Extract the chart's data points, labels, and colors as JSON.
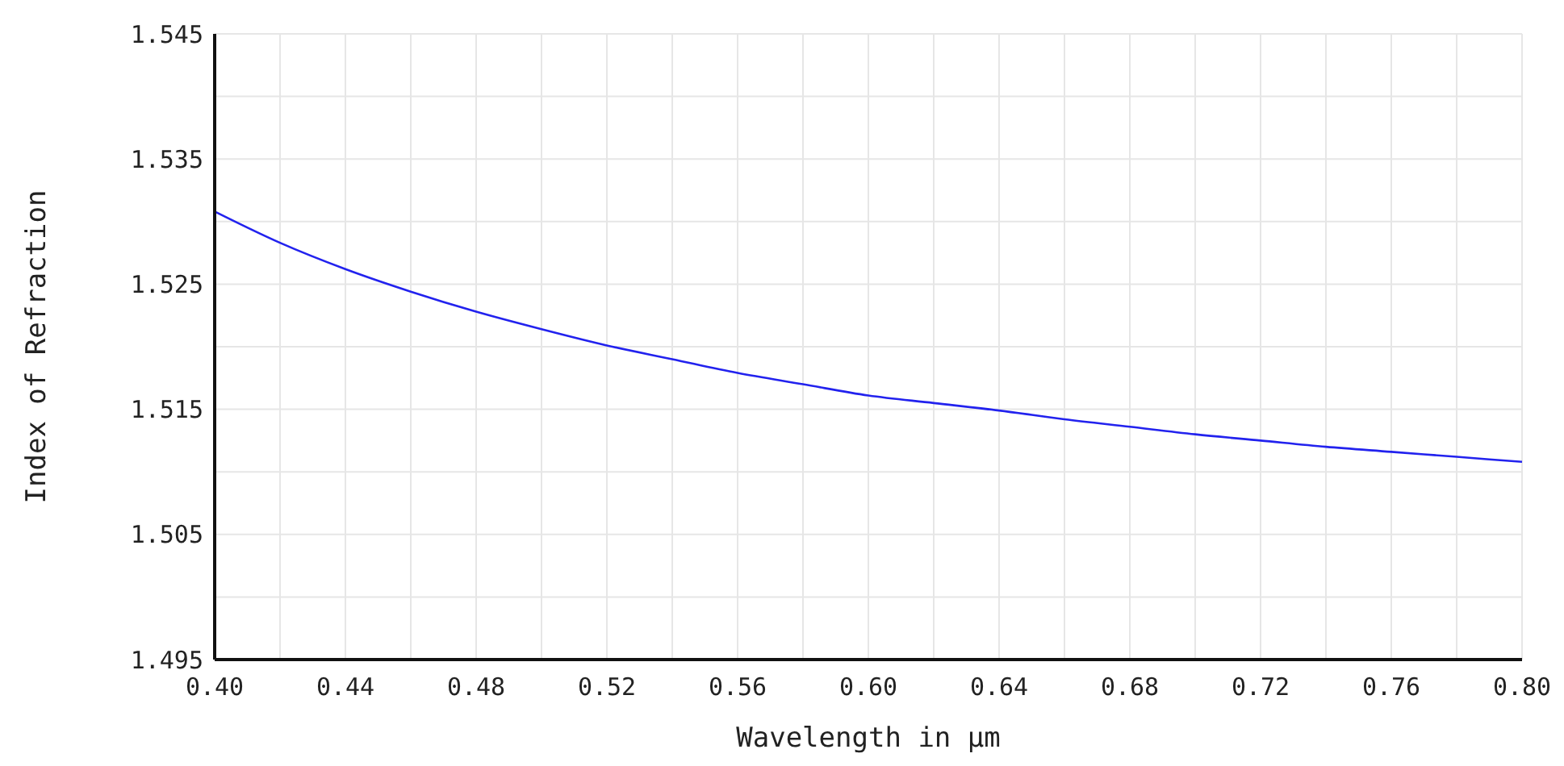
{
  "chart_data": {
    "type": "line",
    "xlabel": "Wavelength in µm",
    "ylabel": "Index of Refraction",
    "x": [
      0.4,
      0.42,
      0.44,
      0.46,
      0.48,
      0.5,
      0.52,
      0.54,
      0.56,
      0.58,
      0.6,
      0.62,
      0.64,
      0.66,
      0.68,
      0.7,
      0.72,
      0.74,
      0.76,
      0.78,
      0.8
    ],
    "series": [
      {
        "color": "#2222ee",
        "values": [
          1.5308,
          1.5283,
          1.5262,
          1.5244,
          1.5228,
          1.5214,
          1.5201,
          1.519,
          1.5179,
          1.517,
          1.5161,
          1.5155,
          1.5149,
          1.5142,
          1.5136,
          1.513,
          1.5125,
          1.512,
          1.5116,
          1.5112,
          1.5108
        ]
      }
    ],
    "xlim": [
      0.4,
      0.8
    ],
    "xticks": [
      {
        "value": 0.4,
        "label": "0.40"
      },
      {
        "value": 0.42,
        "label": null
      },
      0.44,
      {
        "value": 0.46,
        "label": null
      },
      0.48,
      {
        "value": 0.5,
        "label": null
      },
      0.52,
      {
        "value": 0.54,
        "label": null
      },
      0.56,
      {
        "value": 0.58,
        "label": null
      },
      {
        "value": 0.6,
        "label": "0.60"
      },
      {
        "value": 0.62,
        "label": null
      },
      0.64,
      {
        "value": 0.66,
        "label": null
      },
      0.68,
      {
        "value": 0.7,
        "label": null
      },
      0.72,
      {
        "value": 0.74,
        "label": null
      },
      0.76,
      {
        "value": 0.78,
        "label": null
      },
      {
        "value": 0.8,
        "label": "0.80"
      }
    ],
    "ylim": [
      1.495,
      1.545
    ],
    "yticks": [
      1.495,
      {
        "value": 1.5,
        "label": null
      },
      1.505,
      {
        "value": 1.51,
        "label": null
      },
      1.515,
      {
        "value": 1.52,
        "label": null
      },
      1.525,
      {
        "value": 1.53,
        "label": null
      },
      1.535,
      {
        "value": 1.54,
        "label": null
      },
      1.545
    ],
    "grid": true,
    "marker": "none",
    "line_style": "solid"
  }
}
